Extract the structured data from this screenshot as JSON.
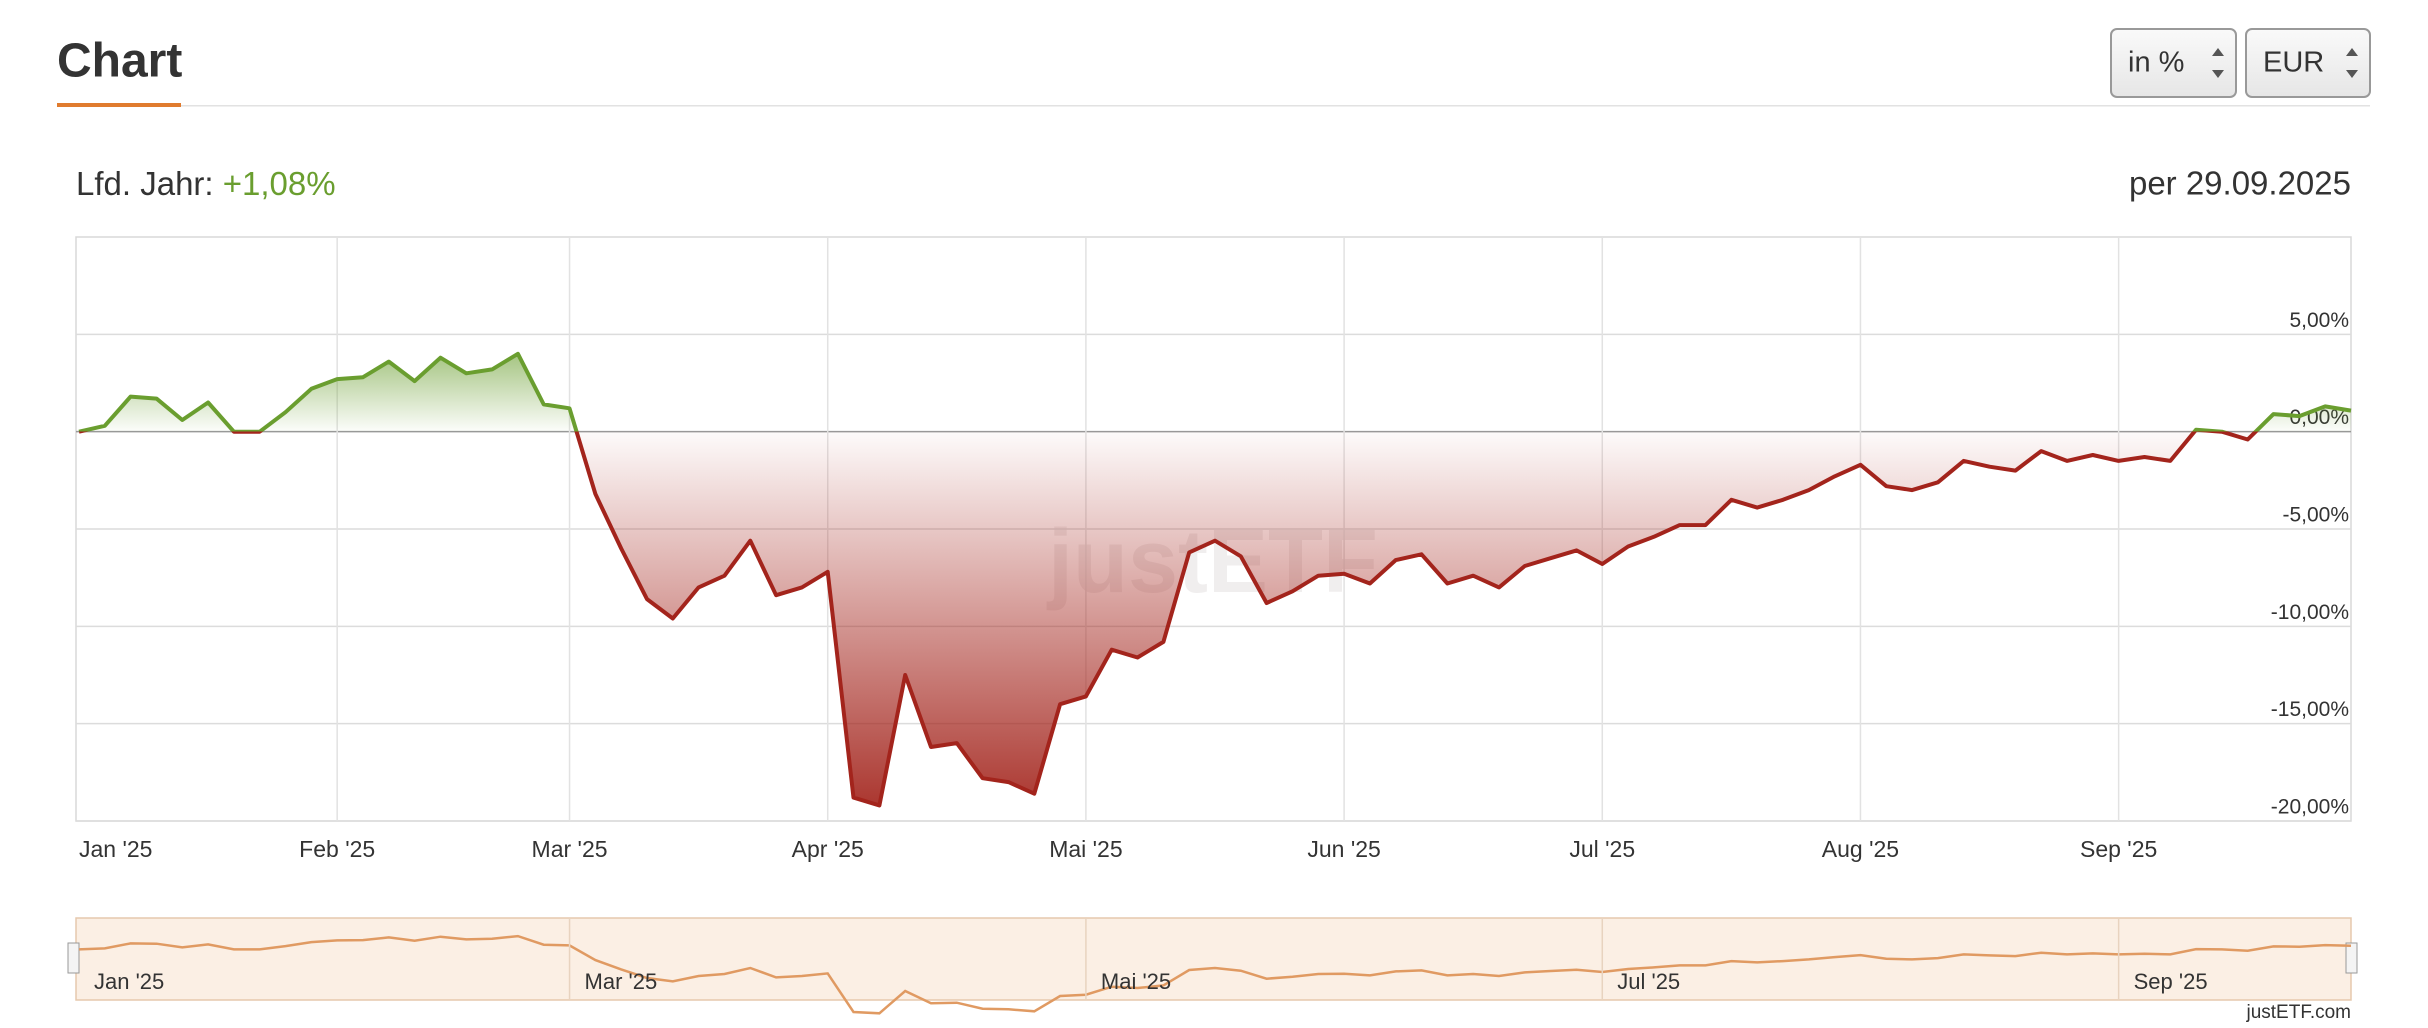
{
  "header": {
    "title": "Chart",
    "selects": [
      "in %",
      "EUR"
    ]
  },
  "chart_data": {
    "type": "line",
    "ytd_label": "Lfd. Jahr:",
    "ytd_value": "+1,08%",
    "date_label": "per 29.09.2025",
    "watermark": "justETF",
    "credit": "justETF.com",
    "categories": [
      "Jan '25",
      null,
      null,
      null,
      null,
      null,
      null,
      null,
      null,
      null,
      "Feb '25",
      null,
      null,
      null,
      null,
      null,
      null,
      null,
      null,
      "Mar '25",
      null,
      null,
      null,
      null,
      null,
      null,
      null,
      null,
      null,
      "Apr '25",
      null,
      null,
      null,
      null,
      null,
      null,
      null,
      null,
      null,
      "Mai '25",
      null,
      null,
      null,
      null,
      null,
      null,
      null,
      null,
      null,
      "Jun '25",
      null,
      null,
      null,
      null,
      null,
      null,
      null,
      null,
      null,
      "Jul '25",
      null,
      null,
      null,
      null,
      null,
      null,
      null,
      null,
      null,
      "Aug '25",
      null,
      null,
      null,
      null,
      null,
      null,
      null,
      null,
      null,
      "Sep '25",
      null,
      null,
      null,
      null,
      null,
      null,
      null,
      null,
      null
    ],
    "values": [
      0,
      0.3,
      1.8,
      1.7,
      0.6,
      1.5,
      0,
      0,
      1.0,
      2.2,
      2.7,
      2.8,
      3.6,
      2.6,
      3.8,
      3.0,
      3.2,
      4.0,
      1.4,
      1.2,
      -3.2,
      -6.0,
      -8.6,
      -9.6,
      -8.0,
      -7.4,
      -5.6,
      -8.4,
      -8.0,
      -7.2,
      -18.8,
      -19.2,
      -12.5,
      -16.2,
      -16.0,
      -17.8,
      -18.0,
      -18.6,
      -14.0,
      -13.6,
      -11.2,
      -11.6,
      -10.8,
      -6.2,
      -5.6,
      -6.4,
      -8.8,
      -8.2,
      -7.4,
      -7.3,
      -7.8,
      -6.6,
      -6.3,
      -7.8,
      -7.4,
      -8.0,
      -6.9,
      -6.5,
      -6.1,
      -6.8,
      -5.9,
      -5.4,
      -4.8,
      -4.8,
      -3.5,
      -3.9,
      -3.5,
      -3.0,
      -2.3,
      -1.7,
      -2.8,
      -3.0,
      -2.6,
      -1.5,
      -1.8,
      -2.0,
      -1.0,
      -1.5,
      -1.2,
      -1.5,
      -1.3,
      -1.5,
      0.1,
      0.0,
      -0.4,
      0.9,
      0.8,
      1.3,
      1.08
    ],
    "color_positive": "#6a9e2f",
    "color_negative": "#a3241c",
    "navigator_color": "#e09a62",
    "ylim": [
      -20,
      10
    ],
    "yticks": [
      {
        "value": 5,
        "label": "5,00%"
      },
      {
        "value": 0,
        "label": "0,00%"
      },
      {
        "value": -5,
        "label": "-5,00%"
      },
      {
        "value": -10,
        "label": "-10,00%"
      },
      {
        "value": -15,
        "label": "-15,00%"
      },
      {
        "value": -20,
        "label": "-20,00%"
      }
    ],
    "grid": true
  }
}
